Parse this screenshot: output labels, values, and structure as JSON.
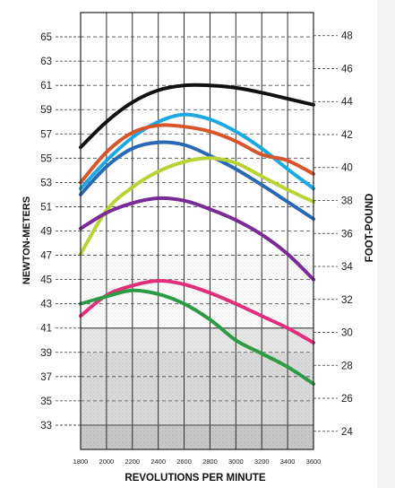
{
  "chart_data": {
    "type": "line",
    "xlabel": "REVOLUTIONS PER MINUTE",
    "ylabel_left": "NEWTON-METERS",
    "ylabel_right": "FOOT-POUND",
    "xlim": [
      1800,
      3600
    ],
    "ylim_left": [
      31,
      67
    ],
    "ylim_right": [
      22.9,
      49.4
    ],
    "x_ticks": [
      1800,
      2000,
      2200,
      2400,
      2600,
      2800,
      3000,
      3200,
      3400,
      3600
    ],
    "y_ticks_left": [
      33,
      35,
      37,
      39,
      41,
      43,
      45,
      47,
      49,
      51,
      53,
      55,
      57,
      59,
      61,
      63,
      65
    ],
    "y_ticks_right": [
      24,
      26,
      28,
      30,
      32,
      34,
      36,
      38,
      40,
      42,
      44,
      46,
      48
    ],
    "grid": true,
    "x": [
      1800,
      2000,
      2200,
      2400,
      2600,
      2800,
      3000,
      3200,
      3400,
      3600
    ],
    "series": [
      {
        "color": "#111111",
        "values": [
          55.9,
          58.0,
          59.6,
          60.6,
          61.0,
          61.0,
          60.8,
          60.4,
          59.9,
          59.4
        ]
      },
      {
        "color": "#1ca9e1",
        "values": [
          52.5,
          54.8,
          56.7,
          58.0,
          58.6,
          58.2,
          57.2,
          55.8,
          54.1,
          52.5
        ]
      },
      {
        "color": "#d8542a",
        "values": [
          53.0,
          55.5,
          57.1,
          57.7,
          57.6,
          57.2,
          56.4,
          55.3,
          54.8,
          53.7
        ]
      },
      {
        "color": "#2a69b4",
        "values": [
          52.0,
          54.3,
          55.8,
          56.3,
          56.1,
          55.2,
          54.1,
          52.8,
          51.4,
          50.0
        ]
      },
      {
        "color": "#b7d334",
        "values": [
          47.1,
          50.7,
          52.6,
          53.9,
          54.7,
          55.0,
          54.6,
          53.5,
          52.4,
          51.4
        ]
      },
      {
        "color": "#7a2b96",
        "values": [
          49.2,
          50.5,
          51.3,
          51.7,
          51.5,
          50.8,
          49.9,
          48.7,
          47.1,
          45.0
        ]
      },
      {
        "color": "#e0307a",
        "values": [
          42.0,
          43.7,
          44.5,
          44.9,
          44.6,
          43.9,
          43.0,
          42.0,
          41.0,
          39.8
        ]
      },
      {
        "color": "#2d9a45",
        "values": [
          43.0,
          43.6,
          44.1,
          43.8,
          43.0,
          41.7,
          40.0,
          38.9,
          37.8,
          36.4
        ]
      }
    ]
  }
}
